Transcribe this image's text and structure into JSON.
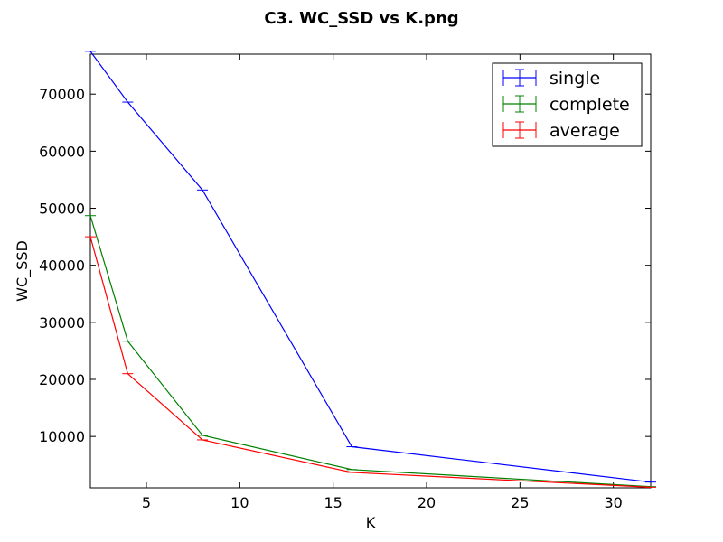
{
  "chart_data": {
    "type": "line",
    "title": "C3. WC_SSD vs K.png",
    "xlabel": "K",
    "ylabel": "WC_SSD",
    "xlim": [
      2,
      32
    ],
    "ylim": [
      1000,
      77000
    ],
    "x": [
      2,
      4,
      8,
      16,
      32
    ],
    "xticks": [
      5,
      10,
      15,
      20,
      25,
      30
    ],
    "yticks": [
      10000,
      20000,
      30000,
      40000,
      50000,
      60000,
      70000
    ],
    "legend_position": "top-right",
    "grid": false,
    "error_bars": true,
    "series": [
      {
        "name": "single",
        "color": "#0000ff",
        "values": [
          77500,
          68600,
          53200,
          8200,
          2000
        ]
      },
      {
        "name": "complete",
        "color": "#008000",
        "values": [
          48700,
          26700,
          10200,
          4200,
          1200
        ]
      },
      {
        "name": "average",
        "color": "#ff0000",
        "values": [
          45000,
          21000,
          9400,
          3700,
          1100
        ]
      }
    ]
  }
}
